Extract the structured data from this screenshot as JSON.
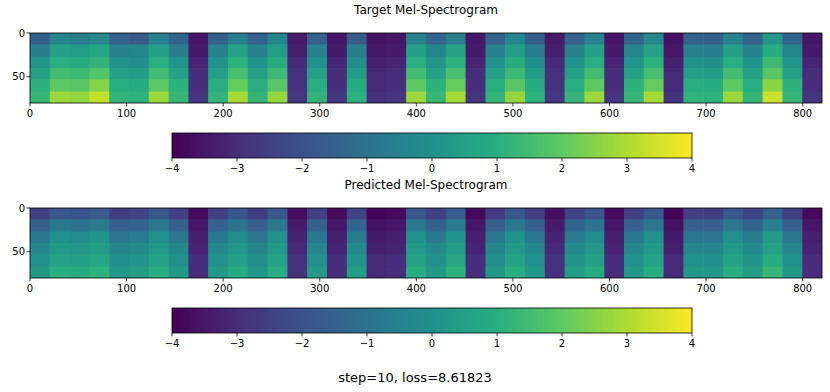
{
  "chart_data": [
    {
      "type": "heatmap",
      "title": "Target Mel-Spectrogram",
      "xlim": [
        0,
        820
      ],
      "ylim": [
        0,
        80
      ],
      "xticks": [
        0,
        100,
        200,
        300,
        400,
        500,
        600,
        700,
        800
      ],
      "yticks": [
        0,
        50
      ],
      "x_edges": [
        0,
        20.5,
        41,
        61.5,
        82,
        102.5,
        123,
        143.5,
        164,
        184.5,
        205,
        225.5,
        246,
        266.5,
        287,
        307.5,
        328,
        348.5,
        369,
        389.5,
        410,
        430.5,
        451,
        471.5,
        492,
        512.5,
        533,
        553.5,
        574,
        594.5,
        615,
        635.5,
        656,
        676.5,
        697,
        717.5,
        738,
        758.5,
        779,
        799.5,
        820
      ],
      "y_edges": [
        0,
        13,
        27,
        40,
        53,
        67,
        80
      ],
      "cells": [
        [
          -1.6,
          -0.4,
          -0.6,
          -0.3,
          -1.5,
          -1.7,
          -0.5,
          -1.4,
          -3.5,
          -1.6,
          -0.6,
          -1.5,
          -0.4,
          -3.4,
          -1.5,
          -3.5,
          -1.7,
          -3.6,
          -3.5,
          -0.5,
          -1.4,
          -0.6,
          -3.5,
          -1.5,
          -0.4,
          -1.6,
          -3.4,
          -1.5,
          -0.5,
          -3.5,
          -1.4,
          -0.3,
          -3.6,
          -1.5,
          -1.6,
          -0.5,
          -1.5,
          0.2,
          -1.4,
          -3.5
        ],
        [
          -0.6,
          0.5,
          0.4,
          0.7,
          -0.5,
          -0.4,
          0.5,
          -0.6,
          -3.4,
          -0.5,
          0.6,
          -0.5,
          0.4,
          -3.3,
          -0.5,
          -3.4,
          -0.6,
          -3.5,
          -3.4,
          0.5,
          -0.4,
          0.6,
          -3.4,
          -0.5,
          0.4,
          -0.6,
          -3.3,
          -0.5,
          0.5,
          -3.4,
          -0.4,
          0.6,
          -3.5,
          -0.5,
          -0.6,
          0.5,
          -0.5,
          0.9,
          -0.4,
          -3.4
        ],
        [
          0.1,
          1.0,
          0.9,
          1.2,
          0.0,
          -0.1,
          1.0,
          0.1,
          -3.2,
          0.0,
          1.1,
          0.0,
          0.9,
          -3.1,
          0.0,
          -3.2,
          -0.1,
          -3.3,
          -3.2,
          1.0,
          0.1,
          1.1,
          -3.2,
          0.0,
          0.9,
          -0.1,
          -3.1,
          0.0,
          1.0,
          -3.2,
          0.1,
          1.1,
          -3.3,
          0.0,
          -0.1,
          1.0,
          0.0,
          1.4,
          0.1,
          -3.2
        ],
        [
          0.6,
          1.5,
          1.4,
          1.8,
          0.5,
          0.4,
          1.5,
          0.6,
          -3.0,
          0.5,
          1.6,
          0.5,
          1.4,
          -2.9,
          0.5,
          -3.0,
          0.4,
          -3.1,
          -3.0,
          1.5,
          0.6,
          1.6,
          -3.0,
          0.5,
          1.4,
          0.4,
          -2.9,
          0.5,
          1.5,
          -3.0,
          0.6,
          1.6,
          -3.1,
          0.5,
          0.4,
          1.5,
          0.5,
          1.9,
          0.6,
          -3.0
        ],
        [
          1.1,
          2.0,
          1.9,
          2.5,
          1.0,
          0.9,
          2.0,
          1.1,
          -3.0,
          1.0,
          2.1,
          1.0,
          1.9,
          -2.9,
          1.0,
          -3.0,
          0.9,
          -3.1,
          -3.0,
          2.0,
          1.1,
          2.1,
          -3.0,
          1.0,
          1.9,
          0.9,
          -2.9,
          1.0,
          2.0,
          -3.0,
          1.1,
          2.1,
          -3.1,
          1.0,
          0.9,
          2.0,
          1.0,
          2.6,
          1.1,
          -3.0
        ],
        [
          1.3,
          2.8,
          2.7,
          3.3,
          1.2,
          1.1,
          2.8,
          1.3,
          -2.8,
          1.2,
          2.9,
          1.2,
          2.7,
          -2.7,
          1.2,
          -2.8,
          1.1,
          -2.9,
          -2.8,
          2.8,
          1.3,
          2.9,
          -2.8,
          1.2,
          2.7,
          1.1,
          -2.7,
          1.2,
          2.8,
          -2.8,
          1.3,
          2.9,
          -2.9,
          1.2,
          1.1,
          2.8,
          1.2,
          3.4,
          1.3,
          -2.8
        ]
      ],
      "colorbar": {
        "range": [
          -4,
          4
        ],
        "ticks": [
          {
            "value": -4,
            "label": "−4"
          },
          {
            "value": -3,
            "label": "−3"
          },
          {
            "value": -2,
            "label": "−2"
          },
          {
            "value": -1,
            "label": "−1"
          },
          0,
          1,
          2,
          3,
          4
        ]
      }
    },
    {
      "type": "heatmap",
      "title": "Predicted Mel-Spectrogram",
      "xlim": [
        0,
        820
      ],
      "ylim": [
        0,
        80
      ],
      "xticks": [
        0,
        100,
        200,
        300,
        400,
        500,
        600,
        700,
        800
      ],
      "yticks": [
        0,
        50
      ],
      "x_edges": [
        0,
        20.5,
        41,
        61.5,
        82,
        102.5,
        123,
        143.5,
        164,
        184.5,
        205,
        225.5,
        246,
        266.5,
        287,
        307.5,
        328,
        348.5,
        369,
        389.5,
        410,
        430.5,
        451,
        471.5,
        492,
        512.5,
        533,
        553.5,
        574,
        594.5,
        615,
        635.5,
        656,
        676.5,
        697,
        717.5,
        738,
        758.5,
        779,
        799.5,
        820
      ],
      "y_edges": [
        0,
        13,
        27,
        40,
        53,
        67,
        80
      ],
      "cells": [
        [
          -2.5,
          -1.8,
          -1.9,
          -1.7,
          -2.6,
          -2.4,
          -1.8,
          -2.5,
          -3.8,
          -2.5,
          -1.9,
          -2.6,
          -1.8,
          -3.7,
          -2.5,
          -3.8,
          -2.4,
          -3.9,
          -3.8,
          -1.8,
          -2.5,
          -1.7,
          -3.8,
          -2.6,
          -1.8,
          -2.5,
          -3.7,
          -2.4,
          -1.9,
          -3.8,
          -2.5,
          -1.8,
          -3.9,
          -2.5,
          -2.6,
          -1.8,
          -2.4,
          -1.5,
          -2.5,
          -3.8
        ],
        [
          -1.5,
          -0.8,
          -0.9,
          -0.7,
          -1.6,
          -1.4,
          -0.8,
          -1.5,
          -3.5,
          -1.5,
          -0.9,
          -1.6,
          -0.8,
          -3.4,
          -1.5,
          -3.5,
          -1.4,
          -3.6,
          -3.5,
          -0.8,
          -1.5,
          -0.7,
          -3.5,
          -1.6,
          -0.8,
          -1.5,
          -3.4,
          -1.4,
          -0.9,
          -3.5,
          -1.5,
          -0.8,
          -3.6,
          -1.5,
          -1.6,
          -0.8,
          -1.4,
          -0.5,
          -1.5,
          -3.5
        ],
        [
          -0.8,
          0.0,
          -0.1,
          0.1,
          -0.9,
          -0.7,
          0.0,
          -0.8,
          -3.3,
          -0.8,
          -0.1,
          -0.9,
          0.0,
          -3.2,
          -0.8,
          -3.3,
          -0.7,
          -3.4,
          -3.3,
          0.0,
          -0.8,
          0.1,
          -3.3,
          -0.9,
          0.0,
          -0.8,
          -3.2,
          -0.7,
          -0.1,
          -3.3,
          -0.8,
          0.0,
          -3.4,
          -0.8,
          -0.9,
          0.0,
          -0.7,
          0.3,
          -0.8,
          -3.3
        ],
        [
          -0.3,
          0.3,
          0.2,
          0.4,
          -0.4,
          -0.2,
          0.3,
          -0.3,
          -3.2,
          -0.3,
          0.2,
          -0.4,
          0.3,
          -3.1,
          -0.3,
          -3.2,
          -0.2,
          -3.3,
          -3.2,
          0.3,
          -0.3,
          0.4,
          -3.2,
          -0.4,
          0.3,
          -0.3,
          -3.1,
          -0.2,
          0.2,
          -3.2,
          -0.3,
          0.3,
          -3.3,
          -0.3,
          -0.4,
          0.3,
          -0.2,
          0.6,
          -0.3,
          -3.2
        ],
        [
          0.0,
          0.6,
          0.5,
          0.7,
          -0.1,
          0.1,
          0.6,
          0.0,
          -3.0,
          0.0,
          0.5,
          -0.1,
          0.6,
          -2.9,
          0.0,
          -3.0,
          0.1,
          -3.1,
          -3.0,
          0.6,
          0.0,
          0.7,
          -3.0,
          -0.1,
          0.6,
          0.0,
          -2.9,
          0.1,
          0.5,
          -3.0,
          0.0,
          0.6,
          -3.1,
          0.0,
          -0.1,
          0.6,
          0.1,
          0.9,
          0.0,
          -3.0
        ],
        [
          0.3,
          1.0,
          0.9,
          1.1,
          0.2,
          0.4,
          1.0,
          0.3,
          -3.0,
          0.3,
          0.9,
          0.2,
          1.0,
          -2.9,
          0.3,
          -3.0,
          0.4,
          -3.1,
          -3.0,
          1.0,
          0.3,
          1.1,
          -3.0,
          0.2,
          1.0,
          0.3,
          -2.9,
          0.4,
          0.9,
          -3.0,
          0.3,
          1.0,
          -3.1,
          0.3,
          0.2,
          1.0,
          0.4,
          1.3,
          0.3,
          -3.0
        ]
      ],
      "colorbar": {
        "range": [
          -4,
          4
        ],
        "ticks": [
          {
            "value": -4,
            "label": "−4"
          },
          {
            "value": -3,
            "label": "−3"
          },
          {
            "value": -2,
            "label": "−2"
          },
          {
            "value": -1,
            "label": "−1"
          },
          0,
          1,
          2,
          3,
          4
        ]
      }
    }
  ],
  "caption": "step=10, loss=8.61823"
}
